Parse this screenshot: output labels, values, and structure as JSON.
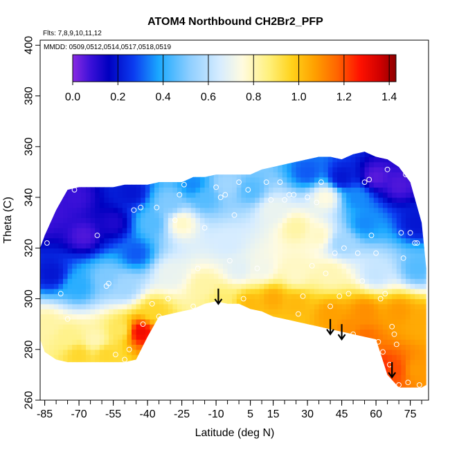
{
  "chart_data": {
    "type": "heatmap",
    "title": "ATOM4 Northbound CH2Br2_PFP",
    "flights_label": "Flts: 7,8,9,10,11,12",
    "dates_label": "MMDD: 0509,0512,0514,0517,0518,0519",
    "xlabel": "Latitude (deg N)",
    "ylabel": "Theta (C)",
    "xlim": [
      -87,
      83
    ],
    "ylim": [
      260,
      402
    ],
    "x_ticks": [
      "-85",
      "-70",
      "-55",
      "-40",
      "-25",
      "-10",
      "5",
      "15",
      "30",
      "45",
      "60",
      "75"
    ],
    "x_tick_values": [
      -85,
      -70,
      -55,
      -40,
      -25,
      -10,
      5,
      15,
      30,
      45,
      60,
      75
    ],
    "x_minor_step": 5,
    "y_ticks": [
      "260",
      "280",
      "300",
      "320",
      "340",
      "360",
      "380",
      "400"
    ],
    "y_tick_values": [
      260,
      280,
      300,
      320,
      340,
      360,
      380,
      400
    ],
    "colorbar": {
      "min": 0.0,
      "max": 1.43,
      "ticks": [
        "0.0",
        "0.2",
        "0.4",
        "0.6",
        "0.8",
        "1.0",
        "1.2",
        "1.4"
      ],
      "tick_values": [
        0.0,
        0.2,
        0.4,
        0.6,
        0.8,
        1.0,
        1.2,
        1.4
      ],
      "stops": [
        {
          "v": 0.0,
          "c": "#8a2be2"
        },
        {
          "v": 0.08,
          "c": "#3a10d8"
        },
        {
          "v": 0.16,
          "c": "#0000c0"
        },
        {
          "v": 0.27,
          "c": "#0b3cf0"
        },
        {
          "v": 0.38,
          "c": "#1aa8ff"
        },
        {
          "v": 0.52,
          "c": "#90cfff"
        },
        {
          "v": 0.65,
          "c": "#d6ecff"
        },
        {
          "v": 0.75,
          "c": "#fffbe0"
        },
        {
          "v": 0.87,
          "c": "#fff07a"
        },
        {
          "v": 0.97,
          "c": "#ffd21a"
        },
        {
          "v": 1.07,
          "c": "#ffa000"
        },
        {
          "v": 1.17,
          "c": "#ff6500"
        },
        {
          "v": 1.27,
          "c": "#ff1200"
        },
        {
          "v": 1.36,
          "c": "#cf0000"
        },
        {
          "v": 1.43,
          "c": "#8c0000"
        }
      ]
    },
    "data_envelope": {
      "lat": [
        -87,
        -85,
        -80,
        -75,
        -70,
        -65,
        -60,
        -55,
        -50,
        -45,
        -40,
        -35,
        -30,
        -25,
        -20,
        -15,
        -10,
        -5,
        0,
        5,
        10,
        15,
        20,
        25,
        30,
        35,
        40,
        45,
        50,
        55,
        60,
        65,
        70,
        75,
        80,
        82
      ],
      "theta_top": [
        320,
        325,
        335,
        343,
        344,
        344,
        344,
        344,
        345,
        345,
        345,
        346,
        346,
        346,
        348,
        348,
        349,
        349,
        349,
        349,
        351,
        352,
        353,
        354,
        355,
        356,
        356,
        355,
        357,
        358,
        356,
        355,
        352,
        346,
        330,
        312
      ],
      "theta_bottom": [
        284,
        279,
        276,
        275,
        275,
        275,
        275,
        275,
        275,
        276,
        285,
        293,
        294,
        295,
        296,
        298,
        299,
        298,
        298,
        296,
        295,
        293,
        292,
        291,
        290,
        289,
        288,
        287,
        286,
        285,
        284,
        270,
        265,
        265,
        265,
        266
      ]
    },
    "field_nodes": [
      {
        "lat": -86,
        "theta": 332,
        "v": 0.08
      },
      {
        "lat": -80,
        "theta": 335,
        "v": 0.08
      },
      {
        "lat": -72,
        "theta": 340,
        "v": 0.08
      },
      {
        "lat": -68,
        "theta": 325,
        "v": 0.06
      },
      {
        "lat": -55,
        "theta": 330,
        "v": 0.12
      },
      {
        "lat": -47,
        "theta": 342,
        "v": 0.2
      },
      {
        "lat": -45,
        "theta": 318,
        "v": 0.3
      },
      {
        "lat": -38,
        "theta": 330,
        "v": 0.45
      },
      {
        "lat": -30,
        "theta": 338,
        "v": 0.5
      },
      {
        "lat": -25,
        "theta": 330,
        "v": 0.78
      },
      {
        "lat": -15,
        "theta": 340,
        "v": 0.45
      },
      {
        "lat": -5,
        "theta": 345,
        "v": 0.55
      },
      {
        "lat": 5,
        "theta": 343,
        "v": 0.45
      },
      {
        "lat": 15,
        "theta": 335,
        "v": 0.7
      },
      {
        "lat": 25,
        "theta": 328,
        "v": 0.82
      },
      {
        "lat": 35,
        "theta": 325,
        "v": 0.78
      },
      {
        "lat": 45,
        "theta": 322,
        "v": 0.55
      },
      {
        "lat": 55,
        "theta": 330,
        "v": 0.35
      },
      {
        "lat": 60,
        "theta": 348,
        "v": 0.05
      },
      {
        "lat": 70,
        "theta": 345,
        "v": 0.06
      },
      {
        "lat": 78,
        "theta": 330,
        "v": 0.2
      },
      {
        "lat": 45,
        "theta": 348,
        "v": 0.2
      },
      {
        "lat": 30,
        "theta": 350,
        "v": 0.3
      },
      {
        "lat": -20,
        "theta": 345,
        "v": 0.35
      },
      {
        "lat": -5,
        "theta": 322,
        "v": 0.65
      },
      {
        "lat": 10,
        "theta": 312,
        "v": 0.72
      },
      {
        "lat": 25,
        "theta": 310,
        "v": 0.78
      },
      {
        "lat": 40,
        "theta": 310,
        "v": 0.8
      },
      {
        "lat": 60,
        "theta": 310,
        "v": 0.62
      },
      {
        "lat": 78,
        "theta": 312,
        "v": 0.45
      },
      {
        "lat": -82,
        "theta": 310,
        "v": 0.2
      },
      {
        "lat": -70,
        "theta": 305,
        "v": 0.4
      },
      {
        "lat": -58,
        "theta": 308,
        "v": 0.5
      },
      {
        "lat": -50,
        "theta": 305,
        "v": 0.55
      },
      {
        "lat": -30,
        "theta": 310,
        "v": 0.7
      },
      {
        "lat": -15,
        "theta": 305,
        "v": 0.82
      },
      {
        "lat": -8,
        "theta": 300,
        "v": 0.88
      },
      {
        "lat": 5,
        "theta": 298,
        "v": 1.02
      },
      {
        "lat": 15,
        "theta": 300,
        "v": 1.05
      },
      {
        "lat": 25,
        "theta": 298,
        "v": 1.02
      },
      {
        "lat": 40,
        "theta": 294,
        "v": 1.07
      },
      {
        "lat": 55,
        "theta": 295,
        "v": 1.1
      },
      {
        "lat": 70,
        "theta": 295,
        "v": 1.08
      },
      {
        "lat": 80,
        "theta": 292,
        "v": 1.05
      },
      {
        "lat": -84,
        "theta": 290,
        "v": 0.82
      },
      {
        "lat": -75,
        "theta": 285,
        "v": 0.85
      },
      {
        "lat": -63,
        "theta": 284,
        "v": 0.8
      },
      {
        "lat": -52,
        "theta": 288,
        "v": 0.9
      },
      {
        "lat": -43,
        "theta": 287,
        "v": 1.3
      },
      {
        "lat": -37,
        "theta": 295,
        "v": 0.95
      },
      {
        "lat": -70,
        "theta": 278,
        "v": 0.95
      },
      {
        "lat": -58,
        "theta": 278,
        "v": 0.95
      },
      {
        "lat": 62,
        "theta": 272,
        "v": 1.25
      },
      {
        "lat": 68,
        "theta": 272,
        "v": 1.2
      },
      {
        "lat": 78,
        "theta": 272,
        "v": 1.08
      },
      {
        "lat": 55,
        "theta": 285,
        "v": 1.15
      },
      {
        "lat": 48,
        "theta": 288,
        "v": 1.1
      },
      {
        "lat": 0,
        "theta": 312,
        "v": 0.68
      },
      {
        "lat": 38,
        "theta": 340,
        "v": 0.75
      },
      {
        "lat": 52,
        "theta": 340,
        "v": 0.35
      }
    ],
    "samples": [
      [
        -86,
        329
      ],
      [
        -84,
        322
      ],
      [
        -78,
        302
      ],
      [
        -75,
        292
      ],
      [
        -72,
        343
      ],
      [
        -62,
        325
      ],
      [
        -58,
        305
      ],
      [
        -57,
        306
      ],
      [
        -54,
        278
      ],
      [
        -50,
        276
      ],
      [
        -48,
        280
      ],
      [
        -46,
        335
      ],
      [
        -43,
        336
      ],
      [
        -42,
        290
      ],
      [
        -38,
        298
      ],
      [
        -36,
        336
      ],
      [
        -35,
        293
      ],
      [
        -31,
        300
      ],
      [
        -28,
        331
      ],
      [
        -26,
        341
      ],
      [
        -24,
        345
      ],
      [
        -20,
        297
      ],
      [
        -18,
        312
      ],
      [
        -15,
        328
      ],
      [
        -10,
        344
      ],
      [
        -8,
        340
      ],
      [
        -6,
        341
      ],
      [
        -4,
        315
      ],
      [
        -2,
        333
      ],
      [
        0,
        346
      ],
      [
        2,
        300
      ],
      [
        4,
        343
      ],
      [
        8,
        312
      ],
      [
        12,
        346
      ],
      [
        14,
        339
      ],
      [
        18,
        346
      ],
      [
        20,
        339
      ],
      [
        22,
        341
      ],
      [
        24,
        341
      ],
      [
        26,
        294
      ],
      [
        28,
        301
      ],
      [
        30,
        340
      ],
      [
        32,
        313
      ],
      [
        34,
        338
      ],
      [
        36,
        346
      ],
      [
        38,
        310
      ],
      [
        40,
        297
      ],
      [
        42,
        318
      ],
      [
        44,
        301
      ],
      [
        46,
        320
      ],
      [
        48,
        302
      ],
      [
        50,
        286
      ],
      [
        52,
        318
      ],
      [
        54,
        307
      ],
      [
        55,
        346
      ],
      [
        57,
        347
      ],
      [
        58,
        325
      ],
      [
        60,
        318
      ],
      [
        61,
        283
      ],
      [
        62,
        300
      ],
      [
        63,
        279
      ],
      [
        64,
        302
      ],
      [
        65,
        351
      ],
      [
        66,
        274
      ],
      [
        67,
        289
      ],
      [
        68,
        286
      ],
      [
        69,
        282
      ],
      [
        70,
        266
      ],
      [
        71,
        326
      ],
      [
        72,
        316
      ],
      [
        73,
        349
      ],
      [
        74,
        267
      ],
      [
        75,
        326
      ],
      [
        76,
        349
      ],
      [
        77,
        322
      ],
      [
        78,
        322
      ],
      [
        79,
        266
      ]
    ],
    "arrows": [
      {
        "lat": -9,
        "theta_from": 304,
        "theta_to": 298
      },
      {
        "lat": 40,
        "theta_from": 292,
        "theta_to": 286
      },
      {
        "lat": 45,
        "theta_from": 290,
        "theta_to": 284
      },
      {
        "lat": 67,
        "theta_from": 275,
        "theta_to": 269
      }
    ],
    "legend_position": "top"
  }
}
